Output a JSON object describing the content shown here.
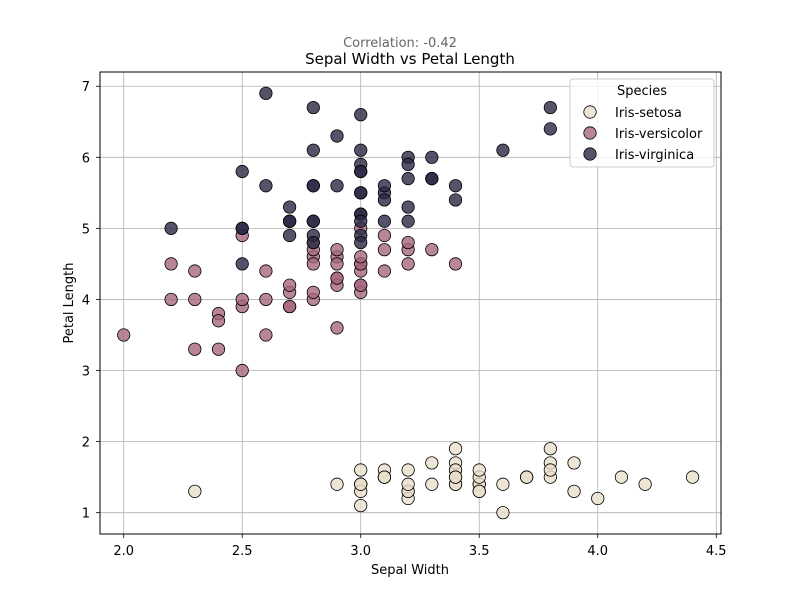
{
  "chart_data": {
    "type": "scatter",
    "subtitle": "Correlation: -0.42",
    "title": "Sepal Width vs Petal Length",
    "xlabel": "Sepal Width",
    "ylabel": "Petal Length",
    "xlim": [
      1.9,
      4.52
    ],
    "ylim": [
      0.7,
      7.2
    ],
    "xticks": [
      "2.0",
      "2.5",
      "3.0",
      "3.5",
      "4.0",
      "4.5"
    ],
    "yticks": [
      "1",
      "2",
      "3",
      "4",
      "5",
      "6",
      "7"
    ],
    "grid": true,
    "legend": {
      "title": "Species",
      "position": "top-right"
    },
    "series": [
      {
        "name": "Iris-setosa",
        "color": "#e8dfca",
        "points": [
          [
            3.5,
            1.4
          ],
          [
            3.0,
            1.4
          ],
          [
            3.2,
            1.3
          ],
          [
            3.1,
            1.5
          ],
          [
            3.6,
            1.4
          ],
          [
            3.9,
            1.7
          ],
          [
            3.4,
            1.4
          ],
          [
            3.4,
            1.5
          ],
          [
            2.9,
            1.4
          ],
          [
            3.1,
            1.5
          ],
          [
            3.7,
            1.5
          ],
          [
            3.4,
            1.6
          ],
          [
            3.0,
            1.4
          ],
          [
            3.0,
            1.1
          ],
          [
            4.0,
            1.2
          ],
          [
            4.4,
            1.5
          ],
          [
            3.9,
            1.3
          ],
          [
            3.5,
            1.4
          ],
          [
            3.8,
            1.7
          ],
          [
            3.8,
            1.5
          ],
          [
            3.4,
            1.7
          ],
          [
            3.7,
            1.5
          ],
          [
            3.6,
            1.0
          ],
          [
            3.3,
            1.7
          ],
          [
            3.4,
            1.9
          ],
          [
            3.0,
            1.6
          ],
          [
            3.4,
            1.6
          ],
          [
            3.5,
            1.5
          ],
          [
            3.4,
            1.4
          ],
          [
            3.2,
            1.6
          ],
          [
            3.1,
            1.6
          ],
          [
            3.4,
            1.5
          ],
          [
            4.1,
            1.5
          ],
          [
            4.2,
            1.4
          ],
          [
            3.1,
            1.5
          ],
          [
            3.2,
            1.2
          ],
          [
            3.5,
            1.3
          ],
          [
            3.1,
            1.5
          ],
          [
            3.0,
            1.3
          ],
          [
            3.4,
            1.5
          ],
          [
            3.5,
            1.3
          ],
          [
            2.3,
            1.3
          ],
          [
            3.2,
            1.3
          ],
          [
            3.5,
            1.6
          ],
          [
            3.8,
            1.9
          ],
          [
            3.0,
            1.4
          ],
          [
            3.8,
            1.6
          ],
          [
            3.2,
            1.4
          ],
          [
            3.7,
            1.5
          ],
          [
            3.3,
            1.4
          ]
        ]
      },
      {
        "name": "Iris-versicolor",
        "color": "#a8677f",
        "points": [
          [
            3.2,
            4.7
          ],
          [
            3.2,
            4.5
          ],
          [
            3.1,
            4.9
          ],
          [
            2.3,
            4.0
          ],
          [
            2.8,
            4.6
          ],
          [
            2.8,
            4.5
          ],
          [
            3.3,
            4.7
          ],
          [
            2.4,
            3.3
          ],
          [
            2.9,
            4.6
          ],
          [
            2.7,
            3.9
          ],
          [
            2.0,
            3.5
          ],
          [
            3.0,
            4.2
          ],
          [
            2.2,
            4.0
          ],
          [
            2.9,
            4.7
          ],
          [
            2.9,
            3.6
          ],
          [
            3.1,
            4.4
          ],
          [
            3.0,
            4.5
          ],
          [
            2.7,
            4.1
          ],
          [
            2.2,
            4.5
          ],
          [
            2.5,
            3.9
          ],
          [
            3.2,
            4.8
          ],
          [
            2.8,
            4.0
          ],
          [
            2.5,
            4.9
          ],
          [
            2.8,
            4.7
          ],
          [
            2.9,
            4.3
          ],
          [
            3.0,
            4.4
          ],
          [
            2.8,
            4.8
          ],
          [
            3.0,
            5.0
          ],
          [
            2.9,
            4.5
          ],
          [
            2.6,
            3.5
          ],
          [
            2.4,
            3.8
          ],
          [
            2.4,
            3.7
          ],
          [
            2.7,
            3.9
          ],
          [
            2.7,
            5.1
          ],
          [
            3.0,
            4.5
          ],
          [
            3.4,
            4.5
          ],
          [
            3.1,
            4.7
          ],
          [
            2.3,
            4.4
          ],
          [
            3.0,
            4.1
          ],
          [
            2.5,
            4.0
          ],
          [
            2.6,
            4.4
          ],
          [
            3.0,
            4.6
          ],
          [
            2.6,
            4.0
          ],
          [
            2.3,
            3.3
          ],
          [
            2.7,
            4.2
          ],
          [
            3.0,
            4.2
          ],
          [
            2.9,
            4.2
          ],
          [
            2.9,
            4.3
          ],
          [
            2.5,
            3.0
          ],
          [
            2.8,
            4.1
          ]
        ]
      },
      {
        "name": "Iris-virginica",
        "color": "#2a2845",
        "points": [
          [
            3.3,
            6.0
          ],
          [
            2.7,
            5.1
          ],
          [
            3.0,
            5.9
          ],
          [
            2.9,
            5.6
          ],
          [
            3.0,
            5.8
          ],
          [
            3.0,
            6.6
          ],
          [
            2.5,
            4.5
          ],
          [
            2.9,
            6.3
          ],
          [
            2.5,
            5.8
          ],
          [
            3.6,
            6.1
          ],
          [
            3.2,
            5.1
          ],
          [
            2.7,
            5.3
          ],
          [
            3.0,
            5.5
          ],
          [
            2.5,
            5.0
          ],
          [
            2.8,
            5.1
          ],
          [
            3.2,
            5.3
          ],
          [
            3.0,
            5.5
          ],
          [
            3.8,
            6.7
          ],
          [
            2.6,
            6.9
          ],
          [
            2.2,
            5.0
          ],
          [
            3.2,
            5.7
          ],
          [
            2.8,
            4.9
          ],
          [
            2.8,
            6.7
          ],
          [
            2.7,
            4.9
          ],
          [
            3.3,
            5.7
          ],
          [
            3.2,
            6.0
          ],
          [
            2.8,
            4.8
          ],
          [
            3.0,
            4.9
          ],
          [
            2.8,
            5.6
          ],
          [
            3.0,
            5.8
          ],
          [
            2.8,
            6.1
          ],
          [
            3.8,
            6.4
          ],
          [
            2.8,
            5.6
          ],
          [
            2.8,
            5.1
          ],
          [
            2.6,
            5.6
          ],
          [
            3.0,
            6.1
          ],
          [
            3.4,
            5.6
          ],
          [
            3.1,
            5.5
          ],
          [
            3.0,
            4.8
          ],
          [
            3.1,
            5.4
          ],
          [
            3.1,
            5.6
          ],
          [
            3.1,
            5.1
          ],
          [
            2.7,
            5.1
          ],
          [
            3.2,
            5.9
          ],
          [
            3.3,
            5.7
          ],
          [
            3.0,
            5.2
          ],
          [
            2.5,
            5.0
          ],
          [
            3.0,
            5.2
          ],
          [
            3.4,
            5.4
          ],
          [
            3.0,
            5.1
          ]
        ]
      }
    ]
  }
}
